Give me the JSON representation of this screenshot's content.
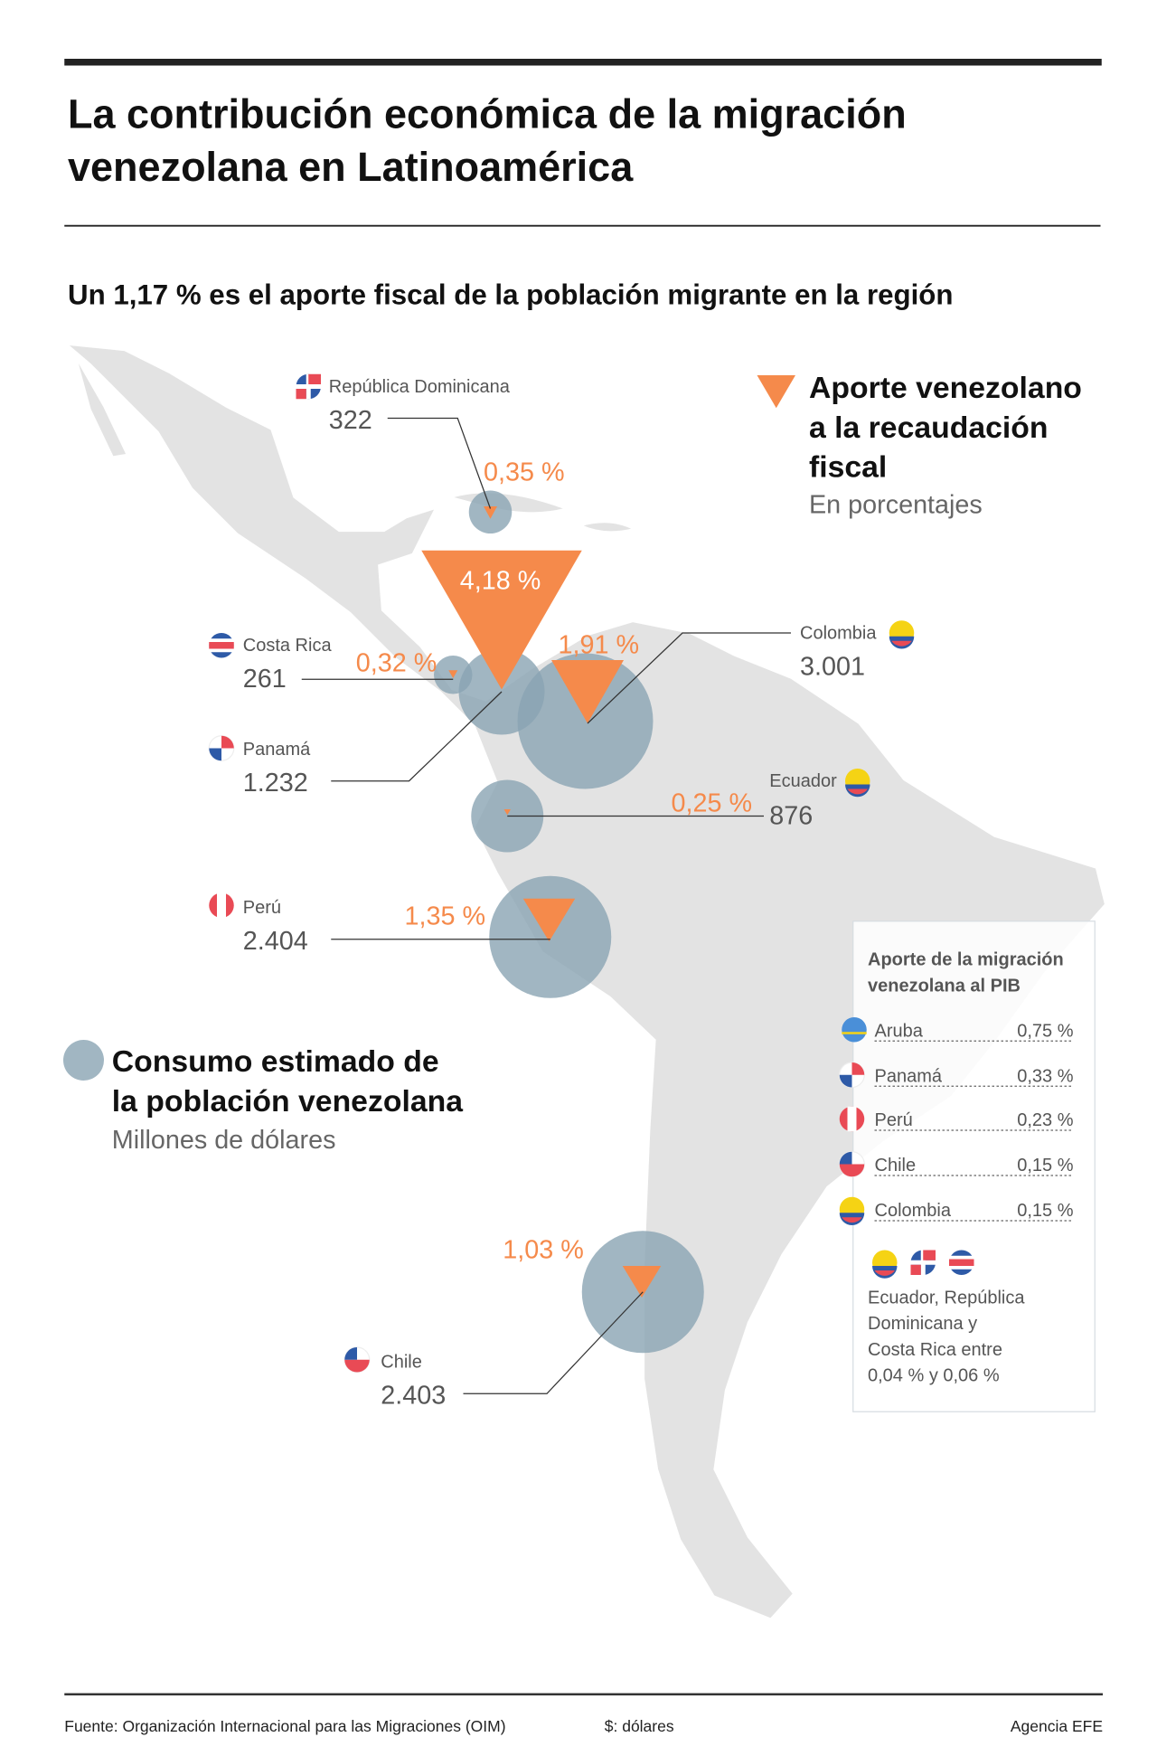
{
  "header": {
    "title_line1": "La contribución económica de la migración",
    "title_line2": "venezolana en Latinoamérica",
    "subtitle": "Un 1,17 % es el aporte fiscal de la población migrante en la región"
  },
  "legend_fiscal": {
    "icon": "orange-triangle",
    "line1": "Aporte venezolano",
    "line2": "a la recaudación",
    "line3": "fiscal",
    "unit": "En porcentajes"
  },
  "legend_consumption": {
    "icon": "grey-circle",
    "line1": "Consumo estimado de",
    "line2": "la población venezolana",
    "unit": "Millones de dólares"
  },
  "colors": {
    "triangle": "#f58a4b",
    "bubble": "#8aa4b3",
    "land": "#e3e3e3"
  },
  "countries": [
    {
      "name": "República Dominicana",
      "consumption": "322",
      "fiscal": "0,35 %"
    },
    {
      "name": "Costa Rica",
      "consumption": "261",
      "fiscal": "0,32 %"
    },
    {
      "name": "Panamá",
      "consumption": "1.232",
      "fiscal": "4,18 %"
    },
    {
      "name": "Colombia",
      "consumption": "3.001",
      "fiscal": "1,91 %"
    },
    {
      "name": "Ecuador",
      "consumption": "876",
      "fiscal": "0,25 %"
    },
    {
      "name": "Perú",
      "consumption": "2.404",
      "fiscal": "1,35 %"
    },
    {
      "name": "Chile",
      "consumption": "2.403",
      "fiscal": "1,03 %"
    }
  ],
  "gdp_box": {
    "title_line1": "Aporte de la migración",
    "title_line2": "venezolana al PIB",
    "rows": [
      {
        "country": "Aruba",
        "value": "0,75 %"
      },
      {
        "country": "Panamá",
        "value": "0,33 %"
      },
      {
        "country": "Perú",
        "value": "0,23 %"
      },
      {
        "country": "Chile",
        "value": "0,15 %"
      },
      {
        "country": "Colombia",
        "value": "0,15 %"
      }
    ],
    "note_line1": "Ecuador, República",
    "note_line2": "Dominicana y",
    "note_line3": "Costa Rica entre",
    "note_line4": "0,04 % y 0,06 %"
  },
  "footer": {
    "source": "Fuente: Organización Internacional para las Migraciones (OIM)",
    "currency": "$: dólares",
    "credit": "Agencia EFE"
  }
}
